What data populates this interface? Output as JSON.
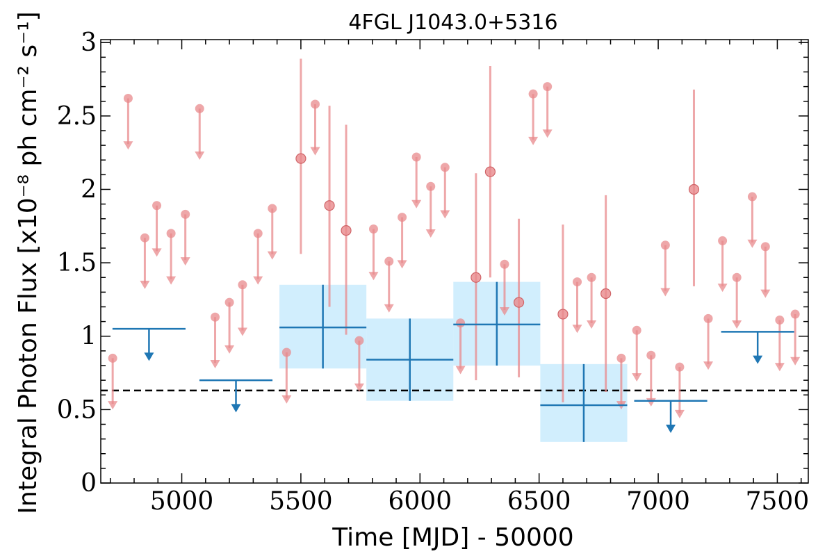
{
  "chart_data": {
    "type": "scatter",
    "title": "4FGL J1043.0+5316",
    "xlabel": "Time [MJD] - 50000",
    "ylabel": "Integral Photon Flux [x10⁻⁸ ph cm⁻² s⁻¹]",
    "xlim": [
      4660,
      7630
    ],
    "ylim": [
      0,
      3.02
    ],
    "x_ticks": [
      5000,
      5500,
      6000,
      6500,
      7000,
      7500
    ],
    "y_ticks": [
      0,
      0.5,
      1,
      1.5,
      2,
      2.5,
      3
    ],
    "y_tick_labels": [
      "0",
      "0.5",
      "1",
      "1.5",
      "2",
      "2.5",
      "3"
    ],
    "baseline_flux": 0.63,
    "colors": {
      "short_bins": "#e8898c",
      "long_bins": "#1f77b4",
      "long_bins_error_box": "#b3e3fb",
      "baseline": "#000000"
    },
    "short_bin_upper_limits": [
      {
        "x": 4710,
        "y": 0.85
      },
      {
        "x": 4775,
        "y": 2.62
      },
      {
        "x": 4845,
        "y": 1.67
      },
      {
        "x": 4895,
        "y": 1.89
      },
      {
        "x": 4955,
        "y": 1.7
      },
      {
        "x": 5015,
        "y": 1.83
      },
      {
        "x": 5075,
        "y": 2.55
      },
      {
        "x": 5140,
        "y": 1.13
      },
      {
        "x": 5200,
        "y": 1.23
      },
      {
        "x": 5255,
        "y": 1.35
      },
      {
        "x": 5320,
        "y": 1.7
      },
      {
        "x": 5380,
        "y": 1.87
      },
      {
        "x": 5440,
        "y": 0.89
      },
      {
        "x": 5560,
        "y": 2.58
      },
      {
        "x": 5745,
        "y": 0.97
      },
      {
        "x": 5805,
        "y": 1.73
      },
      {
        "x": 5870,
        "y": 1.51
      },
      {
        "x": 5925,
        "y": 1.81
      },
      {
        "x": 5985,
        "y": 2.22
      },
      {
        "x": 6045,
        "y": 2.02
      },
      {
        "x": 6105,
        "y": 2.15
      },
      {
        "x": 6170,
        "y": 1.09
      },
      {
        "x": 6355,
        "y": 1.49
      },
      {
        "x": 6475,
        "y": 2.65
      },
      {
        "x": 6535,
        "y": 2.7
      },
      {
        "x": 6660,
        "y": 1.37
      },
      {
        "x": 6720,
        "y": 1.4
      },
      {
        "x": 6845,
        "y": 0.85
      },
      {
        "x": 6910,
        "y": 1.04
      },
      {
        "x": 6970,
        "y": 0.87
      },
      {
        "x": 7030,
        "y": 1.62
      },
      {
        "x": 7090,
        "y": 0.79
      },
      {
        "x": 7210,
        "y": 1.12
      },
      {
        "x": 7270,
        "y": 1.65
      },
      {
        "x": 7330,
        "y": 1.4
      },
      {
        "x": 7395,
        "y": 1.95
      },
      {
        "x": 7450,
        "y": 1.61
      },
      {
        "x": 7510,
        "y": 1.11
      },
      {
        "x": 7575,
        "y": 1.15
      }
    ],
    "short_bin_detections": [
      {
        "x": 5500,
        "y": 2.21,
        "y_low": 1.56,
        "y_high": 2.89
      },
      {
        "x": 5620,
        "y": 1.89,
        "y_low": 1.2,
        "y_high": 2.57
      },
      {
        "x": 5690,
        "y": 1.72,
        "y_low": 1.01,
        "y_high": 2.44
      },
      {
        "x": 6235,
        "y": 1.4,
        "y_low": 0.7,
        "y_high": 2.11
      },
      {
        "x": 6295,
        "y": 2.12,
        "y_low": 1.4,
        "y_high": 2.84
      },
      {
        "x": 6415,
        "y": 1.23,
        "y_low": 0.72,
        "y_high": 1.8
      },
      {
        "x": 6600,
        "y": 1.15,
        "y_low": 0.55,
        "y_high": 1.76
      },
      {
        "x": 6780,
        "y": 1.29,
        "y_low": 0.62,
        "y_high": 1.96
      },
      {
        "x": 7150,
        "y": 2.0,
        "y_low": 1.34,
        "y_high": 2.68
      }
    ],
    "long_bin_upper_limits": [
      {
        "x_start": 4680,
        "x_end": 5045,
        "y": 1.05
      },
      {
        "x_start": 5045,
        "x_end": 5410,
        "y": 0.7
      },
      {
        "x_start": 6870,
        "x_end": 7235,
        "y": 0.56
      },
      {
        "x_start": 7235,
        "x_end": 7600,
        "y": 1.03
      }
    ],
    "long_bin_detections": [
      {
        "x_start": 5410,
        "x_end": 5775,
        "y": 1.06,
        "y_low": 0.78,
        "y_high": 1.35
      },
      {
        "x_start": 5775,
        "x_end": 6140,
        "y": 0.84,
        "y_low": 0.56,
        "y_high": 1.12
      },
      {
        "x_start": 6140,
        "x_end": 6505,
        "y": 1.08,
        "y_low": 0.8,
        "y_high": 1.37
      },
      {
        "x_start": 6505,
        "x_end": 6870,
        "y": 0.53,
        "y_low": 0.28,
        "y_high": 0.81
      }
    ]
  }
}
